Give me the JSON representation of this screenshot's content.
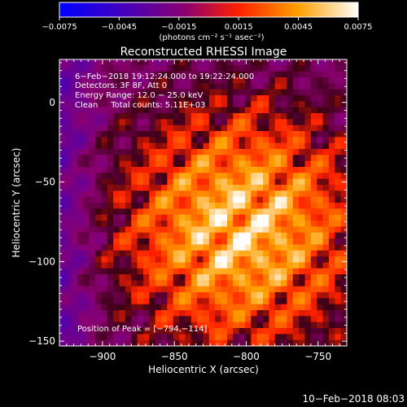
{
  "chart_data": {
    "type": "heatmap",
    "title": "Reconstructed RHESSI Image",
    "xlabel": "Heliocentric X (arcsec)",
    "ylabel": "Heliocentric Y (arcsec)",
    "xlim": [
      -930,
      -730
    ],
    "ylim": [
      -153,
      27
    ],
    "x_ticks": [
      -900,
      -850,
      -800,
      -750
    ],
    "y_ticks": [
      0,
      -50,
      -100,
      -150
    ],
    "x_tick_labels": [
      "−900",
      "−850",
      "−800",
      "−750"
    ],
    "y_tick_labels": [
      "0",
      "−50",
      "−100",
      "−150"
    ],
    "colorbar": {
      "range": [
        -0.0075,
        0.0075
      ],
      "tick_values": [
        -0.0075,
        -0.0045,
        -0.0015,
        0.0015,
        0.0045,
        0.0075
      ],
      "tick_labels": [
        "−0.0075",
        "−0.0045",
        "−0.0015",
        "0.0015",
        "0.0045",
        "0.0075"
      ],
      "units": "(photons cm⁻² s⁻¹ asec⁻²)",
      "colors": [
        "#0000ff",
        "#7000c8",
        "#b00050",
        "#ff4000",
        "#ffb000",
        "#ffffff"
      ]
    },
    "annotations": [
      "6−Feb−2018 19:12:24.000 to 19:22:24.000",
      "Detectors: 3F 8F, Att 0",
      "Energy Range: 12.0 − 25.0 keV",
      "Clean     Total counts: 5.11E+03"
    ],
    "peak_label": "Position of Peak = [−794,−114]",
    "peak": {
      "x": -794,
      "y": -114
    },
    "grid": false
  },
  "footer_timestamp": "10−Feb−2018 08:03"
}
